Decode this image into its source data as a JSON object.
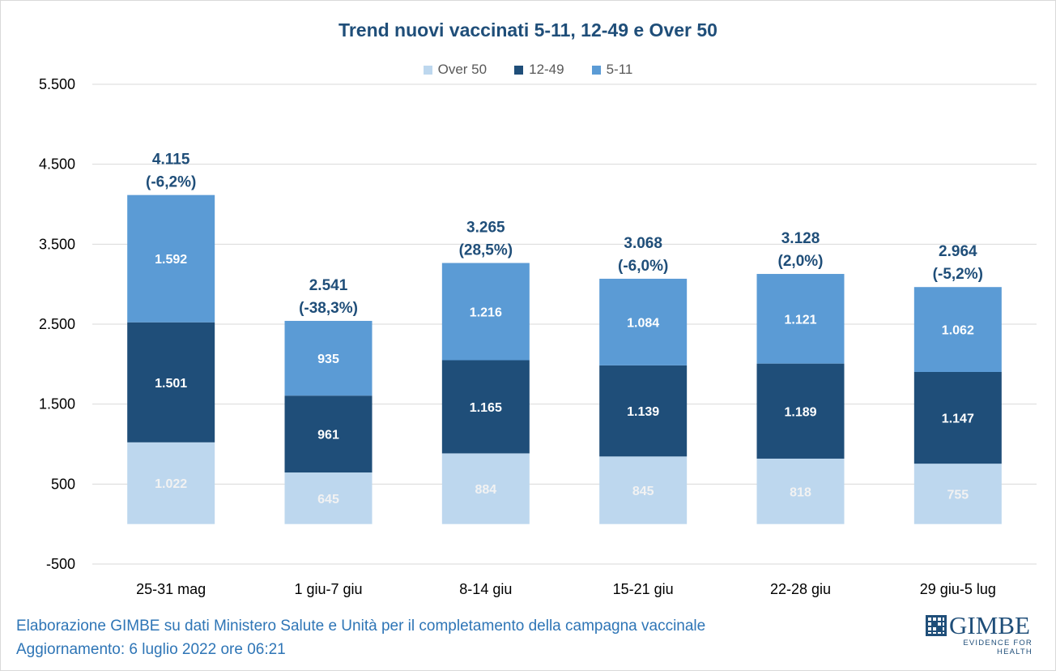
{
  "chart_data": {
    "type": "bar",
    "stacked": true,
    "title": "Trend nuovi vaccinati 5-11, 12-49 e Over 50",
    "categories": [
      "25-31 mag",
      "1 giu-7 giu",
      "8-14 giu",
      "15-21 giu",
      "22-28 giu",
      "29 giu-5 lug"
    ],
    "series": [
      {
        "name": "Over 50",
        "color": "#bdd7ee",
        "values": [
          1022,
          645,
          884,
          845,
          818,
          755
        ],
        "labels": [
          "1.022",
          "645",
          "884",
          "845",
          "818",
          "755"
        ]
      },
      {
        "name": "12-49",
        "color": "#1f4e79",
        "values": [
          1501,
          961,
          1165,
          1139,
          1189,
          1147
        ],
        "labels": [
          "1.501",
          "961",
          "1.165",
          "1.139",
          "1.189",
          "1.147"
        ]
      },
      {
        "name": "5-11",
        "color": "#5b9bd5",
        "values": [
          1592,
          935,
          1216,
          1084,
          1121,
          1062
        ],
        "labels": [
          "1.592",
          "935",
          "1.216",
          "1.084",
          "1.121",
          "1.062"
        ]
      }
    ],
    "totals": [
      {
        "value": "4.115",
        "change": "(-6,2%)"
      },
      {
        "value": "2.541",
        "change": "(-38,3%)"
      },
      {
        "value": "3.265",
        "change": "(28,5%)"
      },
      {
        "value": "3.068",
        "change": "(-6,0%)"
      },
      {
        "value": "3.128",
        "change": "(2,0%)"
      },
      {
        "value": "2.964",
        "change": "(-5,2%)"
      }
    ],
    "ylim": [
      -500,
      5500
    ],
    "yticks": [
      -500,
      500,
      1500,
      2500,
      3500,
      4500,
      5500
    ],
    "ytick_labels": [
      "-500",
      "500",
      "1.500",
      "2.500",
      "3.500",
      "4.500",
      "5.500"
    ],
    "grid": true,
    "legend_position": "top-center"
  },
  "footer": {
    "source": "Elaborazione GIMBE su dati Ministero Salute e Unità per il completamento della campagna vaccinale",
    "updated": "Aggiornamento: 6 luglio 2022 ore 06:21"
  },
  "logo": {
    "name": "GIMBE",
    "tagline": "EVIDENCE FOR HEALTH"
  },
  "colors": {
    "title": "#1f4e79",
    "footer": "#2e75b6",
    "grid": "#d9d9d9"
  }
}
